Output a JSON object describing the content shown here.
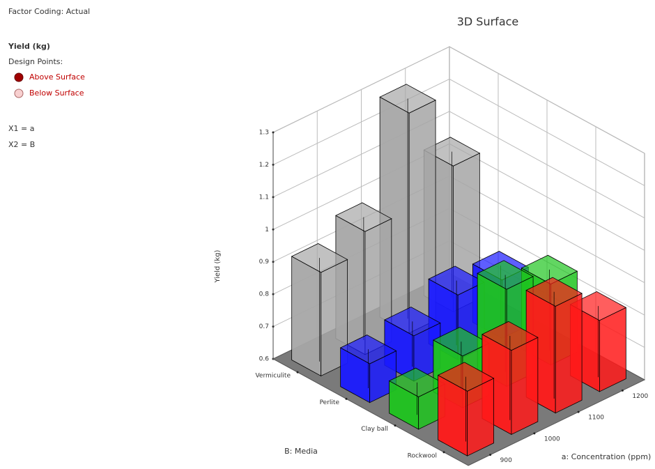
{
  "info": {
    "factor_coding": "Factor Coding: Actual",
    "response": "Yield (kg)",
    "design_points": "Design Points:",
    "above": "Above Surface",
    "below": "Below Surface",
    "x1": "X1 = a",
    "x2": "X2 = B"
  },
  "chart_data": {
    "type": "bar3d",
    "title": "3D Surface",
    "x_label": "a: Concentration (ppm)",
    "z_label": "B: Media",
    "y_label": "Yield (kg)",
    "categories": [
      "900",
      "1000",
      "1100",
      "1200"
    ],
    "series": [
      {
        "name": "Vermiculite",
        "color": "#a6a6a6",
        "values": [
          0.92,
          0.98,
          1.28,
          1.05
        ]
      },
      {
        "name": "Perlite",
        "color": "#1a1aff",
        "values": [
          0.72,
          0.74,
          0.8,
          0.78
        ]
      },
      {
        "name": "Clay ball",
        "color": "#1fc41f",
        "values": [
          0.7,
          0.76,
          0.9,
          0.85
        ]
      },
      {
        "name": "Rockwool",
        "color": "#ff1a1a",
        "values": [
          0.8,
          0.86,
          0.93,
          0.82
        ]
      }
    ],
    "ylim": [
      0.6,
      1.3
    ],
    "yticks": [
      0.6,
      0.7,
      0.8,
      0.9,
      1,
      1.1,
      1.2,
      1.3
    ],
    "grid": true
  }
}
